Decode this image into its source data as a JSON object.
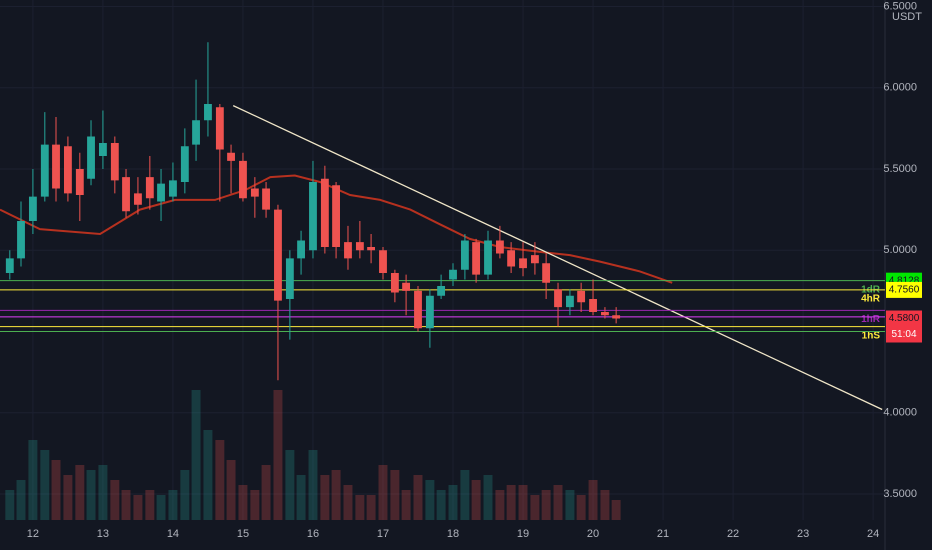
{
  "chart_data": {
    "type": "candlestick",
    "unit": "USDT",
    "x": [
      11.67,
      11.83,
      12.0,
      12.17,
      12.33,
      12.5,
      12.67,
      12.83,
      13.0,
      13.17,
      13.33,
      13.5,
      13.67,
      13.83,
      14.0,
      14.17,
      14.33,
      14.5,
      14.67,
      14.83,
      15.0,
      15.17,
      15.33,
      15.5,
      15.67,
      15.83,
      16.0,
      16.17,
      16.33,
      16.5,
      16.67,
      16.83,
      17.0,
      17.17,
      17.33,
      17.5,
      17.67,
      17.83,
      18.0,
      18.17,
      18.33,
      18.5,
      18.67,
      18.83,
      19.0,
      19.17,
      19.33,
      19.5,
      19.67,
      19.83,
      20.0,
      20.17,
      20.33
    ],
    "open": [
      4.86,
      4.95,
      5.18,
      5.33,
      5.65,
      5.64,
      5.5,
      5.44,
      5.58,
      5.66,
      5.45,
      5.35,
      5.45,
      5.3,
      5.33,
      5.42,
      5.65,
      5.8,
      5.88,
      5.6,
      5.55,
      5.38,
      5.38,
      5.25,
      4.7,
      4.95,
      5.0,
      5.44,
      5.4,
      5.05,
      5.05,
      5.02,
      5.0,
      4.86,
      4.8,
      4.75,
      4.52,
      4.72,
      4.82,
      4.88,
      5.05,
      4.85,
      5.06,
      5.0,
      4.95,
      4.97,
      4.92,
      4.76,
      4.65,
      4.75,
      4.7,
      4.62,
      4.6
    ],
    "high": [
      5.0,
      5.3,
      5.5,
      5.85,
      5.82,
      5.7,
      5.6,
      5.8,
      5.86,
      5.7,
      5.5,
      5.45,
      5.58,
      5.5,
      5.54,
      5.75,
      6.05,
      6.28,
      5.9,
      5.65,
      5.6,
      5.45,
      5.42,
      5.28,
      5.0,
      5.12,
      5.55,
      5.52,
      5.42,
      5.15,
      5.18,
      5.1,
      5.02,
      4.88,
      4.85,
      4.78,
      4.76,
      4.85,
      4.92,
      5.1,
      5.07,
      5.12,
      5.15,
      5.05,
      5.05,
      5.05,
      4.98,
      4.8,
      4.76,
      4.8,
      4.82,
      4.65,
      4.65
    ],
    "low": [
      4.82,
      4.9,
      5.1,
      5.3,
      5.3,
      5.3,
      5.18,
      5.4,
      5.5,
      5.35,
      5.2,
      5.22,
      5.25,
      5.18,
      5.3,
      5.35,
      5.55,
      5.7,
      5.3,
      5.35,
      5.3,
      5.2,
      5.2,
      4.2,
      4.45,
      4.85,
      4.95,
      4.98,
      4.95,
      4.88,
      4.95,
      4.92,
      4.82,
      4.68,
      4.6,
      4.5,
      4.4,
      4.7,
      4.78,
      4.82,
      4.8,
      4.82,
      4.95,
      4.86,
      4.84,
      4.85,
      4.7,
      4.53,
      4.6,
      4.62,
      4.6,
      4.58,
      4.55
    ],
    "close": [
      4.95,
      5.18,
      5.33,
      5.65,
      5.38,
      5.35,
      5.34,
      5.7,
      5.66,
      5.43,
      5.24,
      5.28,
      5.32,
      5.41,
      5.43,
      5.64,
      5.8,
      5.9,
      5.62,
      5.55,
      5.32,
      5.33,
      5.25,
      4.69,
      4.95,
      5.06,
      5.42,
      5.02,
      5.02,
      4.95,
      5.0,
      5.0,
      4.86,
      4.74,
      4.75,
      4.52,
      4.72,
      4.78,
      4.88,
      5.06,
      4.85,
      5.06,
      4.98,
      4.9,
      4.89,
      4.92,
      4.8,
      4.65,
      4.72,
      4.68,
      4.62,
      4.6,
      4.58
    ],
    "up_color": "#26a69a",
    "down_color": "#ef5350",
    "volume": [
      30,
      40,
      80,
      70,
      60,
      45,
      55,
      50,
      55,
      40,
      30,
      25,
      30,
      25,
      30,
      50,
      130,
      90,
      80,
      60,
      35,
      30,
      55,
      130,
      70,
      45,
      70,
      45,
      50,
      35,
      25,
      25,
      55,
      50,
      30,
      45,
      40,
      30,
      35,
      50,
      40,
      45,
      30,
      35,
      35,
      25,
      30,
      35,
      30,
      25,
      40,
      30,
      20
    ],
    "vlim": [
      0,
      520
    ],
    "ma": {
      "color": "#b7311f",
      "x": [
        11.53,
        12.1,
        12.96,
        13.53,
        14.03,
        14.6,
        15.03,
        15.39,
        15.74,
        16.1,
        16.53,
        16.96,
        17.39,
        17.81,
        18.24,
        18.67,
        19.24,
        19.67,
        20.1,
        20.67,
        21.13
      ],
      "values": [
        5.25,
        5.13,
        5.1,
        5.25,
        5.31,
        5.31,
        5.37,
        5.45,
        5.46,
        5.42,
        5.34,
        5.31,
        5.25,
        5.16,
        5.07,
        5.02,
        4.99,
        4.97,
        4.93,
        4.87,
        4.8
      ]
    },
    "trendline": {
      "color": "#f0e6c8",
      "x": [
        14.86,
        24.13
      ],
      "values": [
        5.89,
        4.02
      ]
    },
    "levels": [
      {
        "value": 4.8128,
        "color": "#4caf50",
        "label": "1dR"
      },
      {
        "value": 4.756,
        "color": "#ffeb3b",
        "label": "4hR"
      },
      {
        "value": 4.63,
        "color": "#9c27b0",
        "label": "1hR"
      },
      {
        "value": 4.59,
        "color": "#e040fb"
      },
      {
        "value": 4.53,
        "color": "#ffeb3b",
        "label": "1hS"
      },
      {
        "value": 4.5,
        "color": "#4caf50"
      }
    ],
    "price_tags": [
      {
        "value": 4.8128,
        "label": "4.8128",
        "color": "#00e600"
      },
      {
        "value": 4.756,
        "label": "4.7560",
        "color": "#ffff00"
      },
      {
        "value": 4.58,
        "label": "4.5800",
        "color": "#f23645"
      }
    ],
    "countdown": "51:04",
    "xlim": [
      11.53,
      24.17
    ],
    "ylim": [
      3.34,
      6.54
    ],
    "xticks": [
      12,
      13,
      14,
      15,
      16,
      17,
      18,
      19,
      20,
      21,
      22,
      23,
      24
    ],
    "yticks": [
      {
        "value": 3.5,
        "label": "3.5000"
      },
      {
        "value": 4,
        "label": "4.0000"
      },
      {
        "value": 5,
        "label": "5.0000"
      },
      {
        "value": 5.5,
        "label": "5.5000"
      },
      {
        "value": 6,
        "label": "6.0000"
      },
      {
        "value": 6.5,
        "label": "6.5000"
      }
    ],
    "grid": true
  }
}
